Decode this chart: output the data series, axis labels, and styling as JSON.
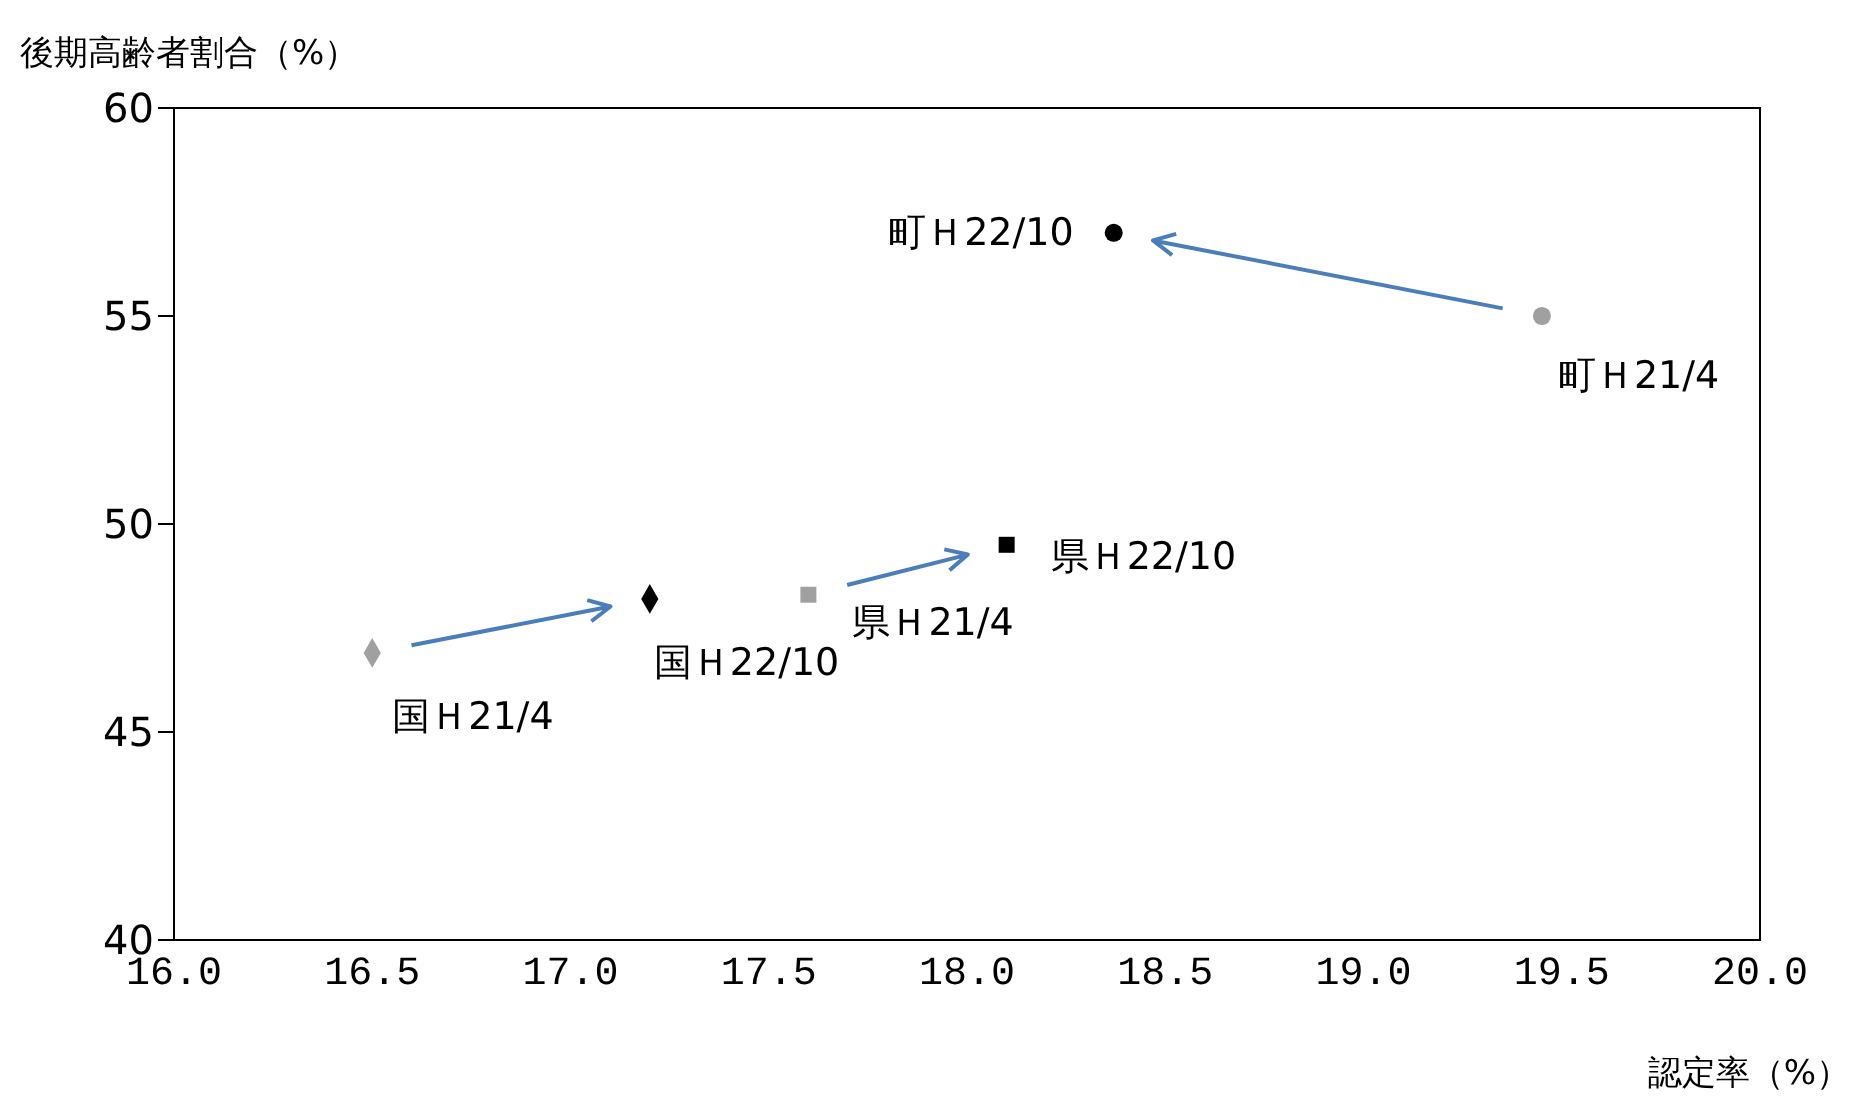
{
  "chart_data": {
    "type": "scatter",
    "xlabel": "認定率（%）",
    "ylabel": "後期高齢者割合（%）",
    "xlim": [
      16.0,
      20.0
    ],
    "xticks": [
      {
        "value": 16,
        "label": "16.0"
      },
      {
        "value": 16.5,
        "label": "16.5"
      },
      {
        "value": 17,
        "label": "17.0"
      },
      {
        "value": 17.5,
        "label": "17.5"
      },
      {
        "value": 18,
        "label": "18.0"
      },
      {
        "value": 18.5,
        "label": "18.5"
      },
      {
        "value": 19,
        "label": "19.0"
      },
      {
        "value": 19.5,
        "label": "19.5"
      },
      {
        "value": 20,
        "label": "20.0"
      }
    ],
    "ylim": [
      40,
      60
    ],
    "yticks": [
      40,
      45,
      50,
      55,
      60
    ],
    "grid": false,
    "legend": false,
    "series": [
      {
        "name": "国Ｈ21/4",
        "color": "#a0a0a0",
        "marker": "diamond",
        "x": [
          16.5
        ],
        "values": [
          46.9
        ]
      },
      {
        "name": "国Ｈ22/10",
        "color": "#000000",
        "marker": "diamond",
        "x": [
          17.2
        ],
        "values": [
          48.2
        ]
      },
      {
        "name": "県Ｈ21/4",
        "color": "#a0a0a0",
        "marker": "square",
        "x": [
          17.6
        ],
        "values": [
          48.3
        ]
      },
      {
        "name": "県Ｈ22/10",
        "color": "#000000",
        "marker": "square",
        "x": [
          18.1
        ],
        "values": [
          49.5
        ]
      },
      {
        "name": "町Ｈ21/4",
        "color": "#a0a0a0",
        "marker": "circle",
        "x": [
          19.45
        ],
        "values": [
          55.0
        ]
      },
      {
        "name": "町Ｈ22/10",
        "color": "#000000",
        "marker": "circle",
        "x": [
          18.37
        ],
        "values": [
          57.0
        ]
      }
    ]
  }
}
